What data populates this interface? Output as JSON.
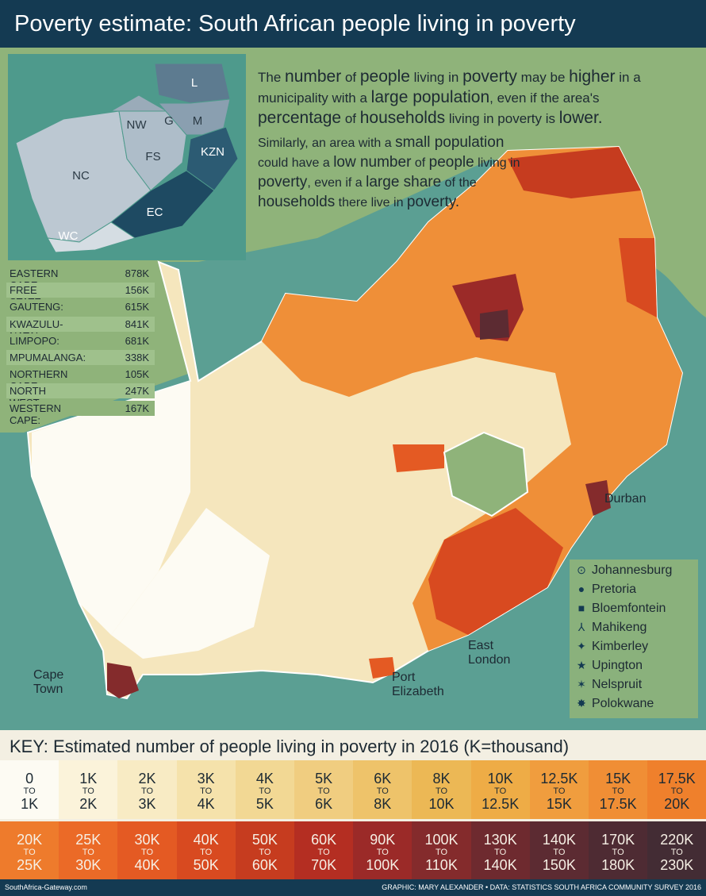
{
  "header": {
    "title": "Poverty estimate: South African people living in poverty"
  },
  "intro": {
    "paragraphs": [
      [
        {
          "text": "The ",
          "big": false
        },
        {
          "text": "number",
          "big": true
        },
        {
          "text": " of ",
          "big": false
        },
        {
          "text": "people",
          "big": true
        },
        {
          "text": " living in ",
          "big": false
        },
        {
          "text": "poverty",
          "big": true
        },
        {
          "text": " may be ",
          "big": false
        },
        {
          "text": "higher",
          "big": true
        },
        {
          "text": " in a municipality with a ",
          "big": false
        },
        {
          "text": "large population",
          "big": true
        },
        {
          "text": ", even if the area's ",
          "big": false
        },
        {
          "text": "percentage",
          "big": true
        },
        {
          "text": " of ",
          "big": false
        },
        {
          "text": "households",
          "big": true
        },
        {
          "text": " living in poverty is ",
          "big": false
        },
        {
          "text": "lower.",
          "big": true
        }
      ],
      [
        {
          "text": "Similarly, an area with a ",
          "big": false
        },
        {
          "text": "small population",
          "big": true
        },
        {
          "text": " could have a ",
          "big": false
        },
        {
          "text": "low number",
          "big": true
        },
        {
          "text": " of ",
          "big": false
        },
        {
          "text": "people",
          "big": true
        },
        {
          "text": " living in ",
          "big": false
        },
        {
          "text": "poverty",
          "big": true
        },
        {
          "text": ", even if a ",
          "big": false
        },
        {
          "text": "large share",
          "big": true
        },
        {
          "text": " of the ",
          "big": false
        },
        {
          "text": "households",
          "big": true
        },
        {
          "text": " there live in ",
          "big": false
        },
        {
          "text": "poverty.",
          "big": true
        }
      ]
    ]
  },
  "inset": {
    "labels": [
      "L",
      "NW",
      "G",
      "M",
      "NC",
      "FS",
      "KZN",
      "EC",
      "WC"
    ]
  },
  "provinces": {
    "rows": [
      [
        "EASTERN CAPE:",
        "878K"
      ],
      [
        "FREE STATE:",
        "156K"
      ],
      [
        "GAUTENG:",
        "615K"
      ],
      [
        "KWAZULU-NATAL:",
        "841K"
      ],
      [
        "LIMPOPO:",
        "681K"
      ],
      [
        "MPUMALANGA:",
        "338K"
      ],
      [
        "NORTHERN CAPE:",
        "105K"
      ],
      [
        "NORTH WEST:",
        "247K"
      ],
      [
        "WESTERN CAPE:",
        "167K"
      ]
    ]
  },
  "map": {
    "labels": [
      "Durban",
      "East London",
      "Port Elizabeth",
      "Cape Town"
    ]
  },
  "cities": {
    "items": [
      {
        "name": "Johannesburg",
        "symbol": "⊙"
      },
      {
        "name": "Pretoria",
        "symbol": "●"
      },
      {
        "name": "Bloemfontein",
        "symbol": "■"
      },
      {
        "name": "Mahikeng",
        "symbol": "⅄"
      },
      {
        "name": "Kimberley",
        "symbol": "✦"
      },
      {
        "name": "Upington",
        "symbol": "★"
      },
      {
        "name": "Nelspruit",
        "symbol": "✶"
      },
      {
        "name": "Polokwane",
        "symbol": "✸"
      }
    ]
  },
  "key": {
    "title": "KEY: Estimated number of people living in poverty in 2016 (K=thousand)",
    "to_word": "TO",
    "rows": [
      {
        "text_color": "#1d2a33",
        "bins": [
          {
            "from": "0",
            "to": "1K",
            "color": "#fdfbf3"
          },
          {
            "from": "1K",
            "to": "2K",
            "color": "#fbf3da"
          },
          {
            "from": "2K",
            "to": "3K",
            "color": "#f8ebc4"
          },
          {
            "from": "3K",
            "to": "4K",
            "color": "#f5e2ab"
          },
          {
            "from": "4K",
            "to": "5K",
            "color": "#f2d894"
          },
          {
            "from": "5K",
            "to": "6K",
            "color": "#f0cd80"
          },
          {
            "from": "6K",
            "to": "8K",
            "color": "#eec36a"
          },
          {
            "from": "8K",
            "to": "10K",
            "color": "#ecb855"
          },
          {
            "from": "10K",
            "to": "12.5K",
            "color": "#eeac46"
          },
          {
            "from": "12.5K",
            "to": "15K",
            "color": "#f09d3e"
          },
          {
            "from": "15K",
            "to": "17.5K",
            "color": "#f08e35"
          },
          {
            "from": "17.5K",
            "to": "20K",
            "color": "#ef802c"
          }
        ]
      },
      {
        "text_color": "#f6efe4",
        "bins": [
          {
            "from": "20K",
            "to": "25K",
            "color": "#ee7b2c"
          },
          {
            "from": "25K",
            "to": "30K",
            "color": "#eb6a27"
          },
          {
            "from": "30K",
            "to": "40K",
            "color": "#e45a23"
          },
          {
            "from": "40K",
            "to": "50K",
            "color": "#d84a20"
          },
          {
            "from": "50K",
            "to": "60K",
            "color": "#c63c1f"
          },
          {
            "from": "60K",
            "to": "70K",
            "color": "#b42e22"
          },
          {
            "from": "90K",
            "to": "100K",
            "color": "#9b2a28"
          },
          {
            "from": "100K",
            "to": "110K",
            "color": "#842b2c"
          },
          {
            "from": "130K",
            "to": "140K",
            "color": "#6e2a2f"
          },
          {
            "from": "140K",
            "to": "150K",
            "color": "#5c2b32"
          },
          {
            "from": "170K",
            "to": "180K",
            "color": "#4e2b33"
          },
          {
            "from": "220K",
            "to": "230K",
            "color": "#432c34"
          }
        ]
      }
    ]
  },
  "footer": {
    "left": "SouthAfrica-Gateway.com",
    "right": "GRAPHIC: MARY ALEXANDER • DATA: STATISTICS SOUTH AFRICA COMMUNITY SURVEY 2016"
  }
}
